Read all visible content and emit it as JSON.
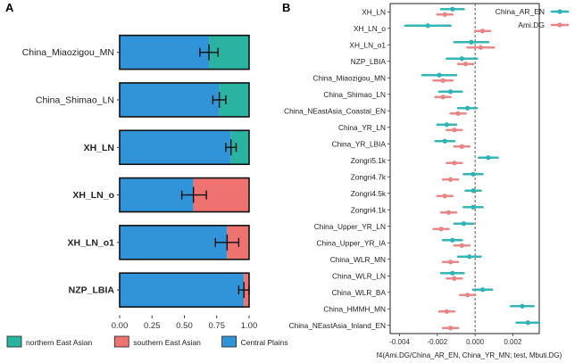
{
  "colors": {
    "northern": "#2ab3a0",
    "southern": "#ee7270",
    "central": "#3294d8",
    "china_ar_en": "#2db3b3",
    "ami_dg": "#e88484"
  },
  "chart_data": [
    {
      "type": "bar",
      "orientation": "horizontal",
      "stacked": true,
      "panel_label": "A",
      "categories": [
        "China_Miaozigou_MN",
        "China_Shimao_LN",
        "XH_LN",
        "XH_LN_o",
        "XH_LN_o1",
        "NZP_LBIA"
      ],
      "bold_categories": [
        "XH_LN",
        "XH_LN_o",
        "XH_LN_o1",
        "NZP_LBIA"
      ],
      "series": [
        {
          "name": "Central Plains",
          "color_key": "central",
          "values": [
            0.69,
            0.77,
            0.86,
            0.57,
            0.83,
            0.96
          ]
        },
        {
          "name": "southern East Asian",
          "color_key": "southern",
          "values": [
            0.0,
            0.0,
            0.0,
            0.43,
            0.17,
            0.04
          ]
        },
        {
          "name": "northern East Asian",
          "color_key": "northern",
          "values": [
            0.31,
            0.23,
            0.14,
            0.0,
            0.0,
            0.0
          ]
        }
      ],
      "error_bars": [
        {
          "center": 0.69,
          "low": 0.62,
          "high": 0.76
        },
        {
          "center": 0.77,
          "low": 0.72,
          "high": 0.82
        },
        {
          "center": 0.86,
          "low": 0.82,
          "high": 0.9
        },
        {
          "center": 0.57,
          "low": 0.48,
          "high": 0.67
        },
        {
          "center": 0.83,
          "low": 0.74,
          "high": 0.92
        },
        {
          "center": 0.96,
          "low": 0.92,
          "high": 1.0
        }
      ],
      "xlim": [
        0,
        1
      ],
      "xticks": [
        "0.00",
        "0.25",
        "0.50",
        "0.75",
        "1.00"
      ],
      "legend": {
        "position": "bottom",
        "entries": [
          {
            "label": "northern East Asian",
            "color_key": "northern"
          },
          {
            "label": "southern East Asian",
            "color_key": "southern"
          },
          {
            "label": "Central Plains",
            "color_key": "central"
          }
        ]
      }
    },
    {
      "type": "scatter",
      "subtype": "dot-and-whisker",
      "panel_label": "B",
      "categories": [
        "XH_LN",
        "XH_LN_o",
        "XH_LN_o1",
        "NZP_LBIA",
        "China_Miaozigou_MN",
        "China_Shimao_LN",
        "China_NEastAsia_Coastal_EN",
        "China_YR_LN",
        "China_YR_LBIA",
        "Zongri5.1k",
        "Zongri4.7k",
        "Zongri4.5k",
        "Zongri4.1k",
        "China_Upper_YR_LN",
        "China_Upper_YR_IA",
        "China_WLR_MN",
        "China_WLR_LN",
        "China_WLR_BA",
        "China_HMMH_MN",
        "China_NEastAsia_Inland_EN"
      ],
      "series": [
        {
          "name": "China_AR_EN",
          "color_key": "china_ar_en",
          "values": [
            -0.0012,
            -0.0025,
            -0.0002,
            -0.0007,
            -0.0019,
            -0.0013,
            -0.0004,
            -0.0015,
            -0.0016,
            0.0007,
            -0.0001,
            -0.0001,
            -0.0001,
            -0.0006,
            -0.0012,
            -0.0003,
            -0.0012,
            0.0004,
            0.0025,
            0.0028
          ],
          "err": [
            0.0006,
            0.0012,
            0.0009,
            0.0008,
            0.0009,
            0.0006,
            0.0005,
            0.0005,
            0.0005,
            0.0005,
            0.0005,
            0.0004,
            0.0005,
            0.0005,
            0.0005,
            0.0006,
            0.0006,
            0.0005,
            0.0006,
            0.0006
          ]
        },
        {
          "name": "Ami.DG",
          "color_key": "ami_dg",
          "values": [
            -0.0016,
            0.0004,
            0.0003,
            -0.0005,
            -0.0017,
            -0.0017,
            -0.0009,
            -0.0011,
            -0.0007,
            -0.0011,
            -0.0013,
            -0.0016,
            -0.0014,
            -0.0018,
            -0.0007,
            -0.0013,
            -0.0011,
            -0.0004,
            -0.0015,
            -0.0013
          ],
          "err": [
            0.0004,
            0.0004,
            0.0007,
            0.0004,
            0.0005,
            0.0004,
            0.0004,
            0.0004,
            0.0004,
            0.0004,
            0.0004,
            0.0004,
            0.0004,
            0.0004,
            0.0004,
            0.0004,
            0.0004,
            0.0004,
            0.0004,
            0.0004
          ]
        }
      ],
      "xlim": [
        -0.0045,
        0.0034
      ],
      "xticks": [
        -0.004,
        -0.002,
        0.0,
        0.002
      ],
      "xtick_labels": [
        "-0.004",
        "-0.002",
        "0.000",
        "0.002"
      ],
      "reference_line": 0,
      "xlabel": "f4(Ami.DG/China_AR_EN, China_YR_MN; test, Mbuti.DG)",
      "legend": {
        "position": "top-right"
      }
    }
  ]
}
